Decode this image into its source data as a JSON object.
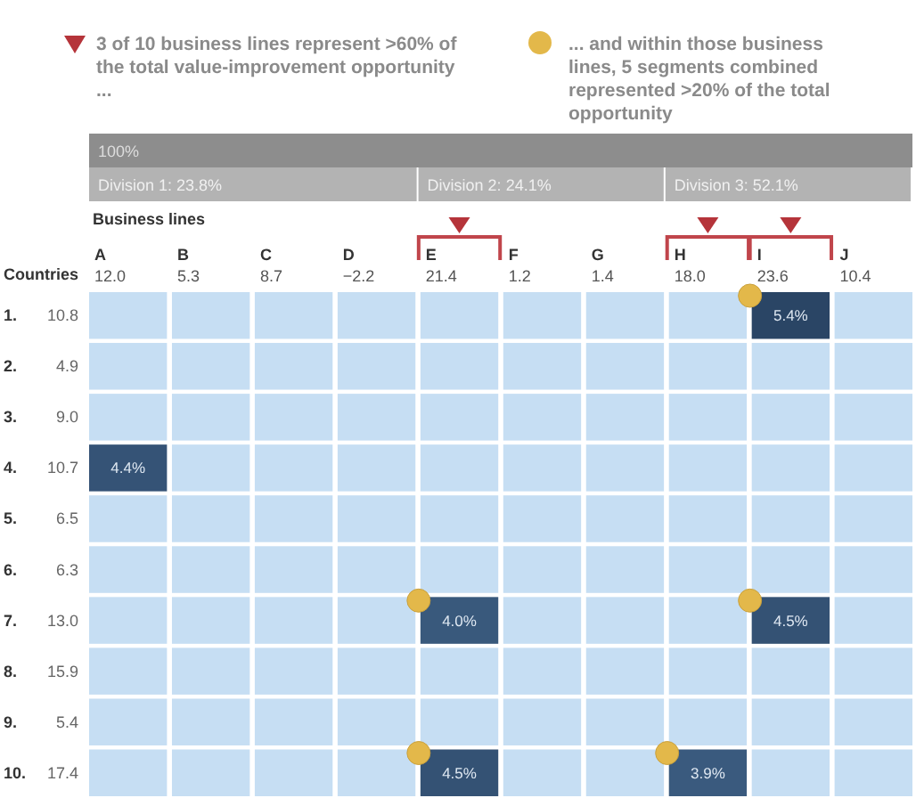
{
  "chart_data": {
    "type": "heatmap",
    "xlabel": "Business lines",
    "ylabel": "Countries",
    "annotations": [
      "3 of 10 business lines represent >60% of the total value-improvement opportunity ...",
      "... and within those business lines, 5 segments combined represented >20% of the total opportunity",
      "100%",
      "Division 1: 23.8%",
      "Division 2: 24.1%",
      "Division 3: 52.1%"
    ],
    "categories": [
      "A 12.0",
      "B 5.3",
      "C 8.7",
      "D −2.2",
      "E 21.4",
      "F 1.2",
      "G 1.4",
      "H 18.0",
      "I 23.6",
      "J 10.4"
    ],
    "y_categories": [
      "1. 10.8",
      "2. 4.9",
      "3. 9.0",
      "4. 10.7",
      "5. 6.5",
      "6. 6.3",
      "7. 13.0",
      "8. 15.9",
      "9. 5.4",
      "10. 17.4"
    ],
    "cells": [
      [
        null,
        null,
        null,
        null,
        null,
        null,
        null,
        null,
        5.4,
        null
      ],
      [
        null,
        null,
        null,
        null,
        null,
        null,
        null,
        null,
        null,
        null
      ],
      [
        null,
        null,
        null,
        null,
        null,
        null,
        null,
        null,
        null,
        null
      ],
      [
        4.4,
        null,
        null,
        null,
        null,
        null,
        null,
        null,
        null,
        null
      ],
      [
        null,
        null,
        null,
        null,
        null,
        null,
        null,
        null,
        null,
        null
      ],
      [
        null,
        null,
        null,
        null,
        null,
        null,
        null,
        null,
        null,
        null
      ],
      [
        null,
        null,
        null,
        null,
        4.0,
        null,
        null,
        null,
        4.5,
        null
      ],
      [
        null,
        null,
        null,
        null,
        null,
        null,
        null,
        null,
        null,
        null
      ],
      [
        null,
        null,
        null,
        null,
        null,
        null,
        null,
        null,
        null,
        null
      ],
      [
        null,
        null,
        null,
        null,
        4.5,
        null,
        null,
        3.9,
        null,
        null
      ]
    ],
    "cell_labels": [
      [
        null,
        null,
        null,
        null,
        null,
        null,
        null,
        null,
        "5.4%",
        null
      ],
      [
        null,
        null,
        null,
        null,
        null,
        null,
        null,
        null,
        null,
        null
      ],
      [
        null,
        null,
        null,
        null,
        null,
        null,
        null,
        null,
        null,
        null
      ],
      [
        "4.4%",
        null,
        null,
        null,
        null,
        null,
        null,
        null,
        null,
        null
      ],
      [
        null,
        null,
        null,
        null,
        null,
        null,
        null,
        null,
        null,
        null
      ],
      [
        null,
        null,
        null,
        null,
        null,
        null,
        null,
        null,
        null,
        null
      ],
      [
        null,
        null,
        null,
        null,
        "4.0%",
        null,
        null,
        null,
        "4.5%",
        null
      ],
      [
        null,
        null,
        null,
        null,
        null,
        null,
        null,
        null,
        null,
        null
      ],
      [
        null,
        null,
        null,
        null,
        null,
        null,
        null,
        null,
        null,
        null
      ],
      [
        null,
        null,
        null,
        null,
        "4.5%",
        null,
        null,
        "3.9%",
        null,
        null
      ]
    ]
  }
}
